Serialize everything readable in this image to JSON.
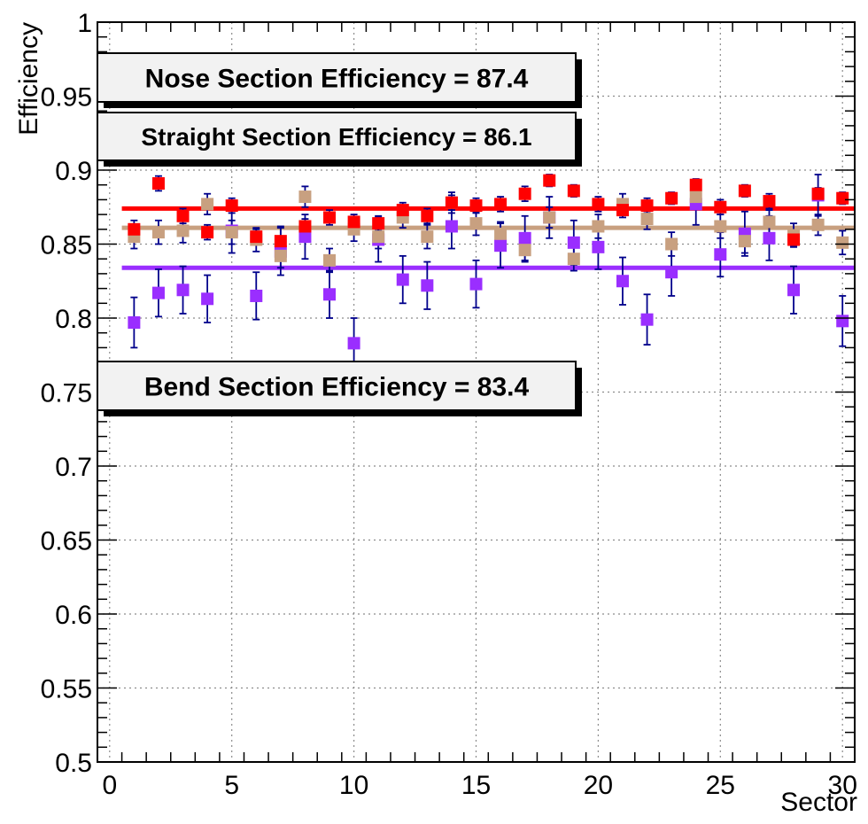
{
  "chart_data": {
    "type": "scatter",
    "title": "",
    "xlabel": "Sector",
    "ylabel": "Efficiency",
    "xlim": [
      -0.5,
      30.5
    ],
    "ylim": [
      0.5,
      1.0
    ],
    "x_ticks": [
      0,
      5,
      10,
      15,
      20,
      25,
      30
    ],
    "x_tick_labels": [
      "0",
      "5",
      "10",
      "15",
      "20",
      "25",
      "30"
    ],
    "y_ticks": [
      0.5,
      0.55,
      0.6,
      0.65,
      0.7,
      0.75,
      0.8,
      0.85,
      0.9,
      0.95,
      1.0
    ],
    "y_tick_labels": [
      "0.5",
      "0.55",
      "0.6",
      "0.65",
      "0.7",
      "0.75",
      "0.8",
      "0.85",
      "0.9",
      "0.95",
      "1"
    ],
    "grid": true,
    "x": [
      1,
      2,
      3,
      4,
      5,
      6,
      7,
      8,
      9,
      10,
      11,
      12,
      13,
      14,
      15,
      16,
      17,
      18,
      19,
      20,
      21,
      22,
      23,
      24,
      25,
      26,
      27,
      28,
      29,
      30
    ],
    "series": [
      {
        "color": "#ff0000",
        "marker": "square",
        "values": [
          0.86,
          0.891,
          0.869,
          0.858,
          0.876,
          0.855,
          0.852,
          0.862,
          0.868,
          0.865,
          0.864,
          0.873,
          0.869,
          0.878,
          0.876,
          0.877,
          0.884,
          0.893,
          0.886,
          0.877,
          0.873,
          0.876,
          0.881,
          0.89,
          0.875,
          0.886,
          0.879,
          0.853,
          0.884,
          0.881
        ],
        "errors": [
          0.006,
          0.005,
          0.005,
          0.005,
          0.005,
          0.005,
          0.01,
          0.005,
          0.005,
          0.005,
          0.005,
          0.005,
          0.005,
          0.005,
          0.005,
          0.005,
          0.005,
          0.004,
          0.004,
          0.005,
          0.005,
          0.005,
          0.004,
          0.004,
          0.005,
          0.004,
          0.005,
          0.004,
          0.004,
          0.004
        ],
        "fit_value": 0.874
      },
      {
        "color": "#c8a080",
        "marker": "square",
        "values": [
          0.855,
          0.858,
          0.859,
          0.877,
          0.858,
          0.853,
          0.842,
          0.882,
          0.839,
          0.86,
          0.855,
          0.868,
          0.855,
          0.878,
          0.864,
          0.857,
          0.846,
          0.868,
          0.84,
          0.862,
          0.877,
          0.867,
          0.85,
          0.882,
          0.862,
          0.852,
          0.865,
          0.856,
          0.863,
          0.851
        ],
        "errors": [
          0.008,
          0.008,
          0.008,
          0.007,
          0.008,
          0.008,
          0.008,
          0.007,
          0.008,
          0.008,
          0.008,
          0.007,
          0.008,
          0.007,
          0.008,
          0.008,
          0.008,
          0.007,
          0.008,
          0.008,
          0.007,
          0.007,
          0.008,
          0.007,
          0.008,
          0.008,
          0.008,
          0.008,
          0.007,
          0.008
        ],
        "fit_value": 0.861
      },
      {
        "color": "#9a2eff",
        "marker": "square",
        "values": [
          0.797,
          0.817,
          0.819,
          0.813,
          0.859,
          0.815,
          0.845,
          0.855,
          0.816,
          0.783,
          0.853,
          0.826,
          0.822,
          0.862,
          0.823,
          0.849,
          0.854,
          0.868,
          0.851,
          0.848,
          0.825,
          0.799,
          0.831,
          0.877,
          0.843,
          0.857,
          0.854,
          0.819,
          0.883,
          0.798
        ],
        "errors": [
          0.017,
          0.016,
          0.016,
          0.016,
          0.015,
          0.016,
          0.016,
          0.015,
          0.016,
          0.017,
          0.015,
          0.016,
          0.016,
          0.015,
          0.016,
          0.015,
          0.015,
          0.014,
          0.015,
          0.015,
          0.016,
          0.017,
          0.016,
          0.014,
          0.015,
          0.015,
          0.015,
          0.016,
          0.014,
          0.017
        ],
        "fit_value": 0.834
      }
    ],
    "legend_boxes": [
      {
        "label": "Nose Section Efficiency = 87.4"
      },
      {
        "label": "Straight Section Efficiency = 86.1"
      },
      {
        "label": "Bend Section Efficiency = 83.4"
      }
    ]
  },
  "colors": {
    "error_bar": "#00008b",
    "legend_box_fill": "#f2f2f2",
    "legend_shadow": "#000000",
    "grid": "#8c8c8c"
  }
}
